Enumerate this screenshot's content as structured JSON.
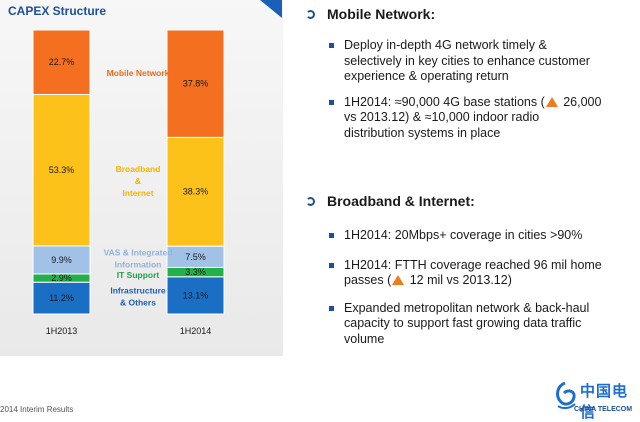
{
  "panel": {
    "title": "CAPEX Structure",
    "accent_color": "#1c5fb8"
  },
  "chart_data": {
    "type": "bar",
    "stacked": true,
    "title": "CAPEX Structure",
    "categories": [
      "1H2013",
      "1H2014"
    ],
    "ylim": [
      0,
      100
    ],
    "series": [
      {
        "name": "Infrastructure & Others",
        "label_lines": [
          "Infrastructure",
          "& Others"
        ],
        "color": "#1a6fc4",
        "label_color": "#1c5fb8",
        "values": [
          11.2,
          13.1
        ],
        "labels": [
          "11.2%",
          "13.1%"
        ]
      },
      {
        "name": "IT Support",
        "label_lines": [
          "IT Support"
        ],
        "color": "#22b04b",
        "label_color": "#22a04b",
        "values": [
          2.9,
          3.3
        ],
        "labels": [
          "2.9%",
          "3.3%"
        ]
      },
      {
        "name": "VAS & Integrated Information",
        "label_lines": [
          "VAS & Integrated",
          "Information"
        ],
        "color": "#a2c1e6",
        "label_color": "#8fb2de",
        "values": [
          9.9,
          7.5
        ],
        "labels": [
          "9.9%",
          "7.5%"
        ]
      },
      {
        "name": "Broadband & Internet",
        "label_lines": [
          "Broadband",
          "&",
          "Internet"
        ],
        "color": "#fcc21a",
        "label_color": "#f5b400",
        "values": [
          53.3,
          38.3
        ],
        "labels": [
          "53.3%",
          "38.3%"
        ]
      },
      {
        "name": "Mobile Network",
        "label_lines": [
          "Mobile Network"
        ],
        "color": "#f46f1f",
        "label_color": "#f06a14",
        "values": [
          22.7,
          37.8
        ],
        "labels": [
          "22.7%",
          "37.8%"
        ]
      }
    ],
    "legend": "center-between-bars",
    "grid": false
  },
  "sections": [
    {
      "heading": "Mobile Network:",
      "bullets": [
        {
          "lines": [
            "Deploy in-depth 4G network timely &",
            "selectively in key cities to enhance customer",
            "experience & operating return"
          ]
        },
        {
          "lines_with_icon": true,
          "line1_pre": "1H2014: ≈90,000 4G base stations (",
          "line1_post": " 26,000",
          "line2": "vs 2013.12) & ≈10,000 indoor radio",
          "line3": "distribution systems in place"
        }
      ]
    },
    {
      "heading": "Broadband & Internet:",
      "bullets": [
        {
          "lines": [
            "1H2014: 20Mbps+ coverage in cities >90%"
          ]
        },
        {
          "lines_with_icon": true,
          "line1": "1H2014: FTTH coverage reached 96 mil home",
          "line2_pre": "passes (",
          "line2_post": " 12 mil vs 2013.12)"
        },
        {
          "lines": [
            "Expanded metropolitan network & back-haul",
            "capacity to support fast growing data traffic",
            "volume"
          ]
        }
      ]
    }
  ],
  "icons": {
    "section_marker": "hook-arrow-icon",
    "increase": "up-triangle-icon",
    "bullet": "square-bullet-icon"
  },
  "footer": {
    "text": "2014 Interim Results"
  },
  "logo": {
    "cn": "中国电信",
    "en": "CHINA TELECOM",
    "color": "#1c6fd0"
  }
}
